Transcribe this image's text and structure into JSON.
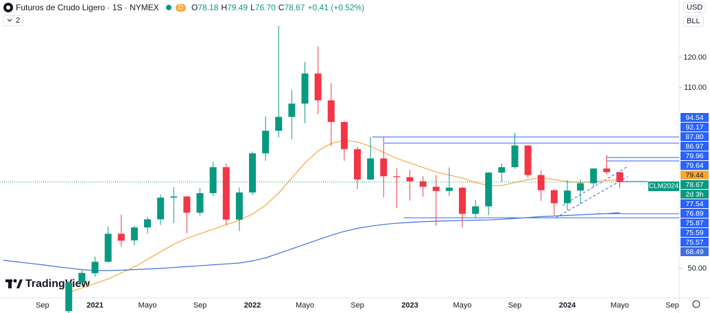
{
  "header": {
    "flag": "D",
    "ohlc": [
      [
        "O",
        "78.18"
      ],
      [
        "H",
        "79.49"
      ],
      [
        "L",
        "76.70"
      ],
      [
        "C",
        "78.67"
      ]
    ],
    "change": "+0.41 (+0.52%)",
    "indicator_count": "2"
  },
  "currency": "USD",
  "unit": "BLL",
  "branding": "TradingView",
  "symbol_badge": "CLM2024",
  "price_labels": [
    {
      "label": "94.54",
      "color": "#2962ff",
      "text_color": "#ffffff"
    },
    {
      "label": "92.17",
      "color": "#2962ff",
      "text_color": "#ffffff"
    },
    {
      "label": "87.80",
      "color": "#2962ff",
      "text_color": "#ffffff"
    },
    {
      "label": "86.97",
      "color": "#2962ff",
      "text_color": "#ffffff"
    },
    {
      "label": "79.96",
      "color": "#2962ff",
      "text_color": "#ffffff"
    },
    {
      "label": "79.64",
      "color": "#2962ff",
      "text_color": "#ffffff"
    },
    {
      "label": "79.44",
      "color": "#f7a738",
      "text_color": "#131722"
    },
    {
      "label": "78.67",
      "color": "#089981",
      "text_color": "#ffffff"
    },
    {
      "label": "2d 3h",
      "color": "#089981",
      "text_color": "#ffffff"
    },
    {
      "label": "77.54",
      "color": "#2962ff",
      "text_color": "#ffffff"
    },
    {
      "label": "76.89",
      "color": "#2962ff",
      "text_color": "#ffffff"
    },
    {
      "label": "75.87",
      "color": "#2962ff",
      "text_color": "#ffffff"
    },
    {
      "label": "75.59",
      "color": "#2962ff",
      "text_color": "#ffffff"
    },
    {
      "label": "75.57",
      "color": "#2962ff",
      "text_color": "#ffffff"
    },
    {
      "label": "68.49",
      "color": "#3d6ee0",
      "text_color": "#ffffff"
    }
  ],
  "chart_data": {
    "type": "candlestick",
    "title": "Futuros de Crudo Ligero · 1S · NYMEX",
    "categories": [
      null,
      null,
      null,
      "Sep",
      null,
      null,
      null,
      "2021",
      null,
      null,
      null,
      "Mayo",
      null,
      null,
      null,
      "Sep",
      null,
      null,
      null,
      "2022",
      null,
      null,
      null,
      "Mayo",
      null,
      null,
      null,
      "Sep",
      null,
      null,
      null,
      "2023",
      null,
      null,
      null,
      "Mayo",
      null,
      null,
      null,
      "Sep",
      null,
      null,
      null,
      "2024",
      null,
      null,
      null,
      "Mayo",
      null,
      null,
      null,
      "Sep"
    ],
    "open": [
      null,
      null,
      null,
      null,
      null,
      35.8,
      45.3,
      48.4,
      52.2,
      61.5,
      59.3,
      63.6,
      66.3,
      73.5,
      73.9,
      68.5,
      75.0,
      83.6,
      66.2,
      75.2,
      88.2,
      95.7,
      100.3,
      104.7,
      114.7,
      105.8,
      98.6,
      89.6,
      79.5,
      86.5,
      80.6,
      80.3,
      78.9,
      77.1,
      75.7,
      76.8,
      68.1,
      70.6,
      81.8,
      83.6,
      90.8,
      81.0,
      75.96,
      71.65,
      75.85,
      78.26,
      83.17,
      81.93,
      null,
      null,
      null,
      null
    ],
    "high": [
      null,
      null,
      null,
      null,
      null,
      45.9,
      49.4,
      53.9,
      63.8,
      67.9,
      64.2,
      67.0,
      74.5,
      76.98,
      74.0,
      76.7,
      85.4,
      84.9,
      76.9,
      88.8,
      100.5,
      130.5,
      109.2,
      118.6,
      123.7,
      111.5,
      98.9,
      90.4,
      93.6,
      93.7,
      83.3,
      82.7,
      80.6,
      81.0,
      83.5,
      77.2,
      72.7,
      82.0,
      84.9,
      95.0,
      90.9,
      82.6,
      76.2,
      79.3,
      79.6,
      83.2,
      87.7,
      82.0,
      null,
      null,
      null,
      null
    ],
    "low": [
      null,
      null,
      null,
      null,
      null,
      33.6,
      44.4,
      47.2,
      51.9,
      57.3,
      57.6,
      61.6,
      64.4,
      65.0,
      61.7,
      67.6,
      74.0,
      64.4,
      62.4,
      74.3,
      85.7,
      93.5,
      92.9,
      98.2,
      101.2,
      90.6,
      85.7,
      76.3,
      79.3,
      73.6,
      70.1,
      72.5,
      73.8,
      64.1,
      74.0,
      63.6,
      66.8,
      67.7,
      78.8,
      83.0,
      80.1,
      72.4,
      67.7,
      69.3,
      71.4,
      77.0,
      81.2,
      76.7,
      null,
      null,
      null,
      null
    ],
    "close": [
      null,
      null,
      null,
      null,
      null,
      45.3,
      48.5,
      52.2,
      61.5,
      59.2,
      63.6,
      66.3,
      73.5,
      73.9,
      68.5,
      75.0,
      83.6,
      66.2,
      75.2,
      88.2,
      95.7,
      100.3,
      104.7,
      114.7,
      105.8,
      98.6,
      89.6,
      79.5,
      86.5,
      80.6,
      80.3,
      78.9,
      77.1,
      75.7,
      76.8,
      68.1,
      70.6,
      81.8,
      83.6,
      90.8,
      81.0,
      75.96,
      71.65,
      75.85,
      78.26,
      83.17,
      81.93,
      78.67,
      null,
      null,
      null,
      null
    ],
    "up_color": "#089981",
    "down_color": "#f23645",
    "series": [
      {
        "color": "#f7a738",
        "values": [
          null,
          null,
          null,
          null,
          null,
          42,
          43.5,
          45,
          46.5,
          48.5,
          50.5,
          53,
          55.5,
          58,
          60,
          61.5,
          63,
          64.5,
          66,
          68,
          71,
          75,
          80,
          85,
          89,
          91.5,
          92.5,
          92,
          90.5,
          88.5,
          86.5,
          85,
          83.5,
          82,
          81,
          80,
          78.5,
          77.5,
          77.5,
          78.5,
          79.5,
          80,
          79.5,
          78.8,
          78.5,
          78.8,
          79.2,
          79.44,
          null,
          null,
          null,
          null
        ]
      },
      {
        "color": "#3d6ee0",
        "values": [
          52.7,
          52.2,
          51.7,
          51.2,
          50.6,
          50.1,
          49.6,
          49.3,
          49.3,
          49.4,
          49.6,
          49.8,
          50.0,
          50.3,
          50.6,
          50.9,
          51.2,
          51.5,
          51.8,
          52.5,
          53.5,
          55,
          56.5,
          58,
          59.5,
          61,
          62.3,
          63.3,
          64.0,
          64.6,
          65.0,
          65.3,
          65.5,
          65.7,
          65.8,
          65.9,
          66.0,
          66.1,
          66.3,
          66.6,
          66.9,
          67.2,
          67.4,
          67.6,
          67.8,
          68.0,
          68.2,
          68.49,
          null,
          null,
          null,
          null
        ]
      }
    ],
    "ylim": [
      40.2,
      139.1
    ],
    "yticks": [
      {
        "value": 120,
        "label": "120.00"
      },
      {
        "value": 110,
        "label": "110.00"
      },
      {
        "value": 50,
        "label": "50.00"
      }
    ]
  }
}
